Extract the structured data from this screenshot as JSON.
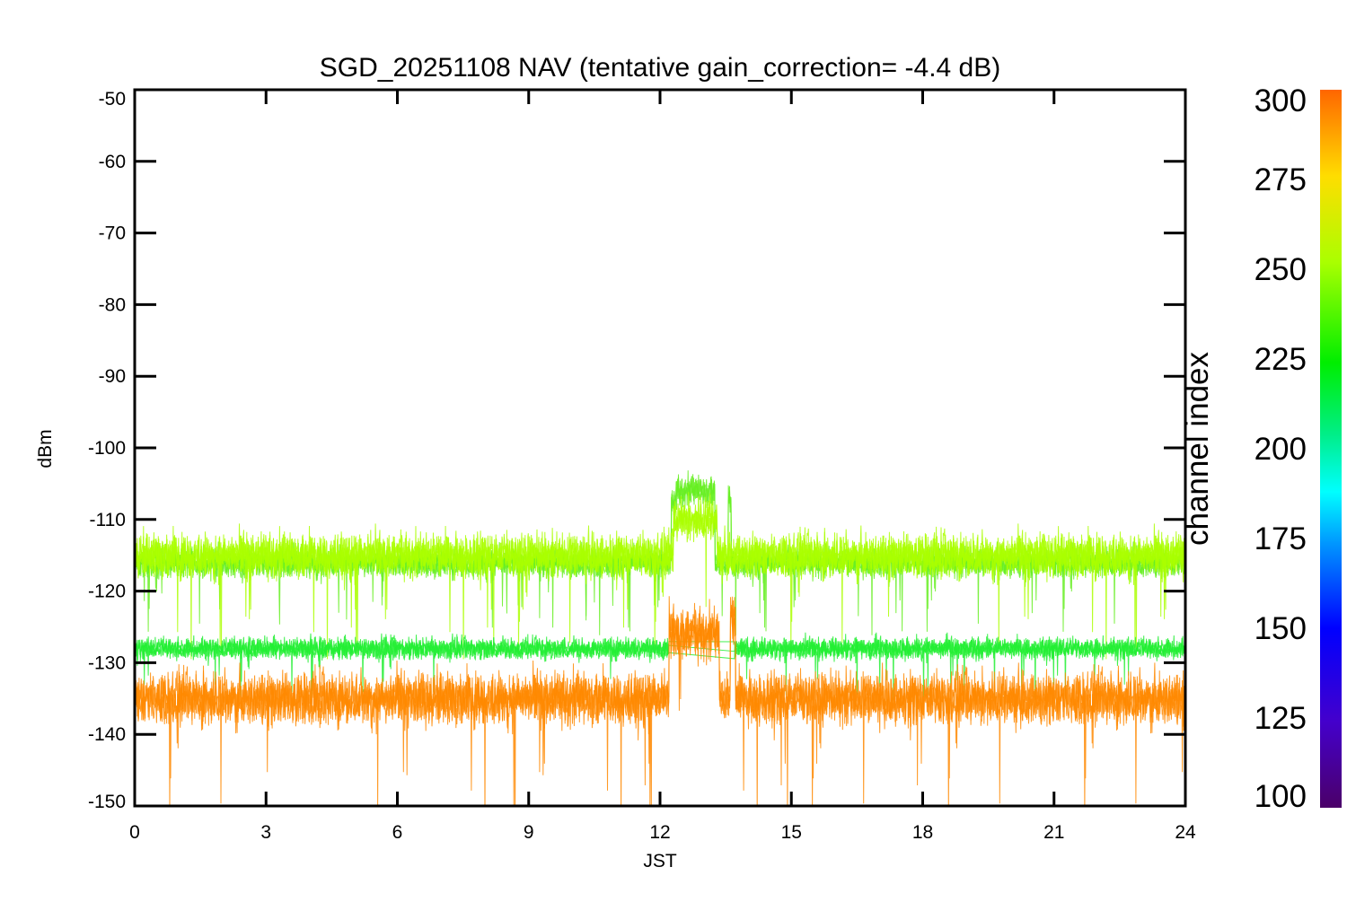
{
  "chart_data": {
    "type": "line",
    "title": "SGD_20251108 NAV (tentative gain_correction= -4.4 dB)",
    "xlabel": "JST",
    "ylabel": "dBm",
    "xlim": [
      0,
      24
    ],
    "ylim": [
      -150,
      -50
    ],
    "xticks": [
      0,
      3,
      6,
      9,
      12,
      15,
      18,
      21,
      24
    ],
    "yticks": [
      -50,
      -60,
      -70,
      -80,
      -90,
      -100,
      -110,
      -120,
      -130,
      -140,
      -150
    ],
    "grid": false,
    "colorbar": {
      "label": "channel index",
      "range": [
        100,
        300
      ],
      "ticks": [
        100,
        125,
        150,
        175,
        200,
        225,
        250,
        275,
        300
      ],
      "colormap": "rainbow"
    },
    "series": [
      {
        "channel_range": [
          230,
          250
        ],
        "color": "#66ee22",
        "baseline_dBm": -117,
        "spread_dBm": 3.5,
        "segments": [
          {
            "x": [
              0,
              12.25
            ],
            "y_center": -116
          },
          {
            "x": [
              12.25,
              12.35
            ],
            "y_center": -108
          },
          {
            "x": [
              12.35,
              13.25
            ],
            "y_center": -106
          },
          {
            "x": [
              13.25,
              13.55
            ],
            "y_center": -116
          },
          {
            "x": [
              13.55,
              13.62
            ],
            "y_center": -107
          },
          {
            "x": [
              13.62,
              24
            ],
            "y_center": -116
          }
        ]
      },
      {
        "channel_range": [
          255,
          270
        ],
        "color": "#aaff00",
        "baseline_dBm": -115,
        "spread_dBm": 5,
        "segments": [
          {
            "x": [
              0,
              12.3
            ],
            "y_center": -115
          },
          {
            "x": [
              12.3,
              13.3
            ],
            "y_center": -110
          },
          {
            "x": [
              13.3,
              24
            ],
            "y_center": -115
          }
        ]
      },
      {
        "channel_range": [
          215,
          235
        ],
        "color": "#22ee33",
        "baseline_dBm": -128,
        "spread_dBm": 2.5,
        "segments": [
          {
            "x": [
              0,
              12.2
            ],
            "y_center": -128
          },
          {
            "x": [
              13.7,
              24
            ],
            "y_center": -128
          }
        ]
      },
      {
        "channel_range": [
          270,
          300
        ],
        "color": "#ff8800",
        "baseline_dBm": -135,
        "spread_dBm": 6,
        "segments": [
          {
            "x": [
              0,
              12.2
            ],
            "y_center": -135
          },
          {
            "x": [
              12.2,
              13.35
            ],
            "y_center": -126
          },
          {
            "x": [
              13.35,
              13.6
            ],
            "y_center": -135
          },
          {
            "x": [
              13.6,
              13.72
            ],
            "y_center": -124
          },
          {
            "x": [
              13.72,
              24
            ],
            "y_center": -135
          }
        ]
      }
    ]
  }
}
